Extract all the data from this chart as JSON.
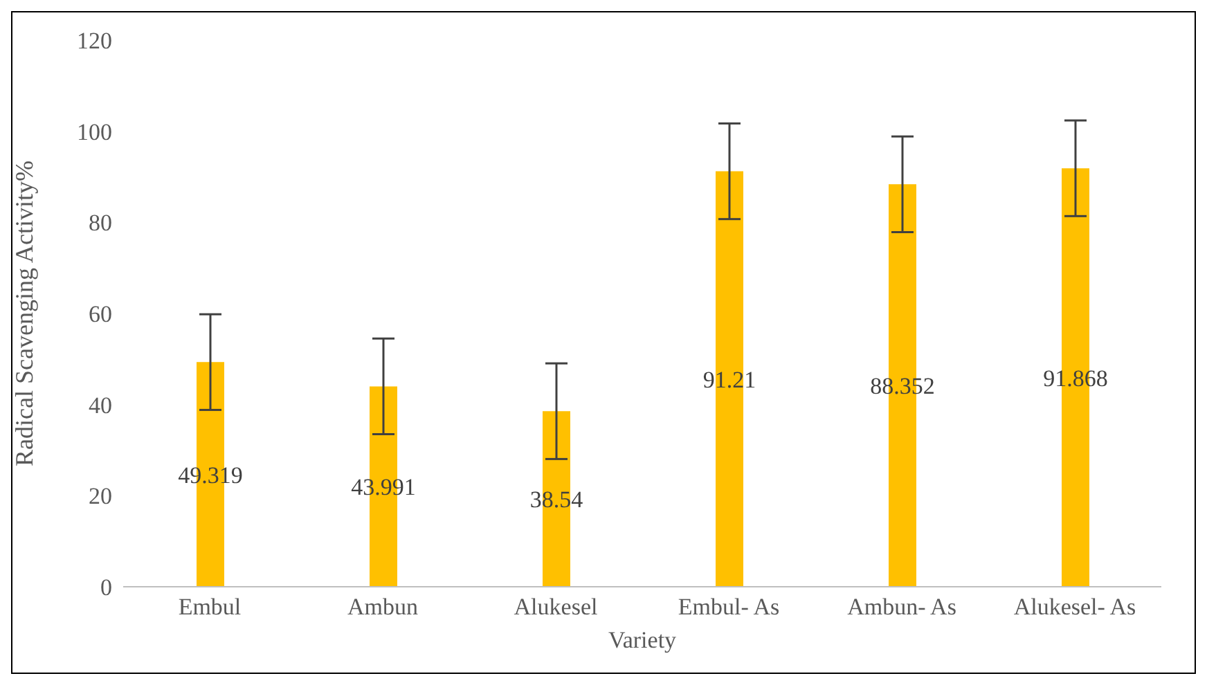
{
  "chart_data": {
    "type": "bar",
    "xlabel": "Variety",
    "ylabel": "Radical Scavenging Activity%",
    "categories": [
      "Embul",
      "Ambun",
      "Alukesel",
      "Embul- As",
      "Ambun- As",
      "Alukesel- As"
    ],
    "values": [
      49.319,
      43.991,
      38.54,
      91.21,
      88.352,
      91.868
    ],
    "errors": [
      10.5,
      10.5,
      10.5,
      10.5,
      10.5,
      10.5
    ],
    "color": "#ffc000",
    "ylim": [
      0,
      120
    ],
    "yticks": [
      0,
      20,
      40,
      60,
      80,
      100,
      120
    ],
    "grid": false,
    "legend": false,
    "data_labels": true
  }
}
